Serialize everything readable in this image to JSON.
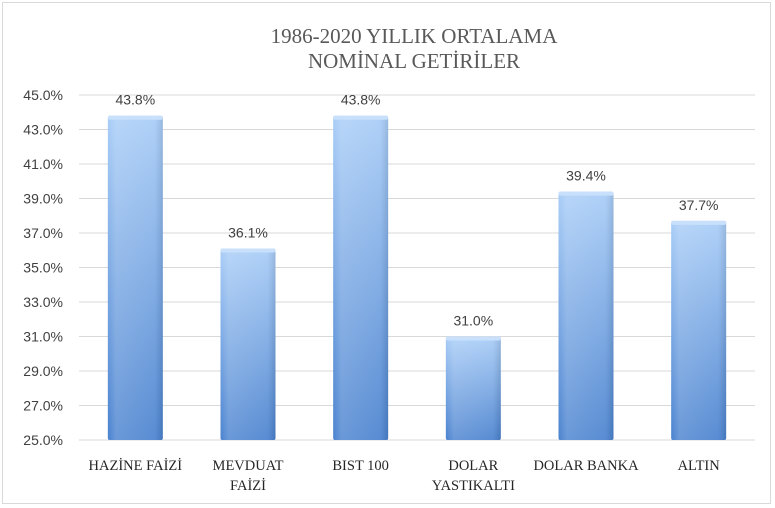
{
  "chart_data": {
    "type": "bar",
    "title_lines": [
      "1986-2020 YILLIK ORTALAMA",
      "NOMİNAL GETİRİLER"
    ],
    "categories": [
      [
        "HAZİNE FAİZİ"
      ],
      [
        "MEVDUAT",
        "FAİZİ"
      ],
      [
        "BIST 100"
      ],
      [
        "DOLAR",
        "YASTIKALTI"
      ],
      [
        "DOLAR BANKA"
      ],
      [
        "ALTIN"
      ]
    ],
    "values": [
      43.8,
      36.1,
      43.8,
      31.0,
      39.4,
      37.7
    ],
    "value_labels": [
      "43.8%",
      "36.1%",
      "43.8%",
      "31.0%",
      "39.4%",
      "37.7%"
    ],
    "ylim": [
      25,
      45
    ],
    "yticks": [
      25,
      27,
      29,
      31,
      33,
      35,
      37,
      39,
      41,
      43,
      45
    ],
    "ytick_labels": [
      "25.0%",
      "27.0%",
      "29.0%",
      "31.0%",
      "33.0%",
      "35.0%",
      "37.0%",
      "39.0%",
      "41.0%",
      "43.0%",
      "45.0%"
    ],
    "grid": true,
    "legend": "none",
    "xlabel": "",
    "ylabel": "",
    "colors": {
      "bar_light": "#a9cdf7",
      "bar_dark": "#4a82cf",
      "grid": "#d9d9d9"
    }
  }
}
